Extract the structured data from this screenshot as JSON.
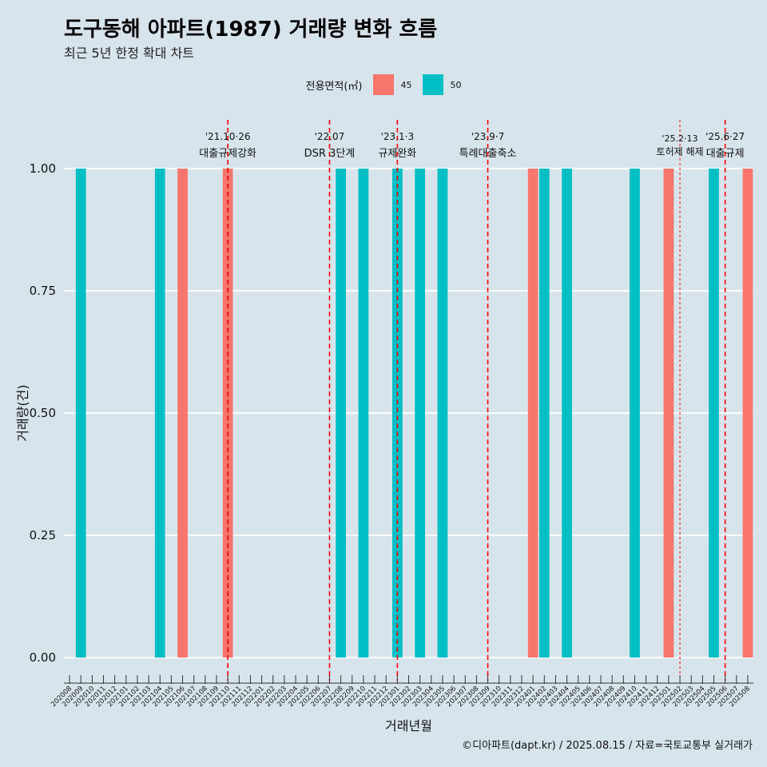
{
  "chart_data": {
    "type": "bar",
    "title": "도구동해 아파트(1987) 거래량 변화 흐름",
    "subtitle": "최근 5년 한정 확대 차트",
    "xlabel": "거래년월",
    "ylabel": "거래량(건)",
    "ylim": [
      0,
      1
    ],
    "yticks": [
      "0.00",
      "0.25",
      "0.50",
      "0.75",
      "1.00"
    ],
    "legend_title": "전용면적(㎡)",
    "series": [
      {
        "name": "45",
        "color": "#f8766d"
      },
      {
        "name": "50",
        "color": "#00bfc4"
      }
    ],
    "categories": [
      "202008",
      "202009",
      "202010",
      "202011",
      "202012",
      "202101",
      "202102",
      "202103",
      "202104",
      "202105",
      "202106",
      "202107",
      "202108",
      "202109",
      "202110",
      "202111",
      "202112",
      "202201",
      "202202",
      "202203",
      "202204",
      "202205",
      "202206",
      "202207",
      "202208",
      "202209",
      "202210",
      "202211",
      "202212",
      "202301",
      "202302",
      "202303",
      "202304",
      "202305",
      "202306",
      "202307",
      "202308",
      "202309",
      "202310",
      "202311",
      "202312",
      "202401",
      "202402",
      "202403",
      "202404",
      "202405",
      "202406",
      "202407",
      "202408",
      "202409",
      "202410",
      "202411",
      "202412",
      "202501",
      "202502",
      "202503",
      "202504",
      "202505",
      "202506",
      "202507",
      "202508"
    ],
    "bars": [
      {
        "month": "202009",
        "series": "50",
        "value": 1
      },
      {
        "month": "202104",
        "series": "50",
        "value": 1
      },
      {
        "month": "202106",
        "series": "45",
        "value": 1
      },
      {
        "month": "202110",
        "series": "45",
        "value": 1
      },
      {
        "month": "202208",
        "series": "50",
        "value": 1
      },
      {
        "month": "202210",
        "series": "50",
        "value": 1
      },
      {
        "month": "202301",
        "series": "50",
        "value": 1
      },
      {
        "month": "202303",
        "series": "50",
        "value": 1
      },
      {
        "month": "202305",
        "series": "50",
        "value": 1
      },
      {
        "month": "202401",
        "series": "45",
        "value": 1
      },
      {
        "month": "202402",
        "series": "50",
        "value": 1
      },
      {
        "month": "202404",
        "series": "50",
        "value": 1
      },
      {
        "month": "202410",
        "series": "50",
        "value": 1
      },
      {
        "month": "202501",
        "series": "45",
        "value": 1
      },
      {
        "month": "202505",
        "series": "50",
        "value": 1
      },
      {
        "month": "202508",
        "series": "45",
        "value": 1
      }
    ],
    "events": [
      {
        "month": "202110",
        "date": "'21.10·26",
        "label": "대출규제강화",
        "style": "dashed"
      },
      {
        "month": "202207",
        "date": "'22.07",
        "label": "DSR 3단계",
        "style": "dashed"
      },
      {
        "month": "202301",
        "date": "'23.1·3",
        "label": "규제완화",
        "style": "dashed"
      },
      {
        "month": "202309",
        "date": "'23.9·7",
        "label": "특례대출축소",
        "style": "dashed"
      },
      {
        "month": "202502",
        "date": "'25.2·13",
        "label": "토허제 해제",
        "style": "dotted"
      },
      {
        "month": "202506",
        "date": "'25.6·27",
        "label": "대출규제",
        "style": "dashed"
      }
    ],
    "caption": "©디아파트(dapt.kr) / 2025.08.15 / 자료=국토교통부 실거래가"
  }
}
